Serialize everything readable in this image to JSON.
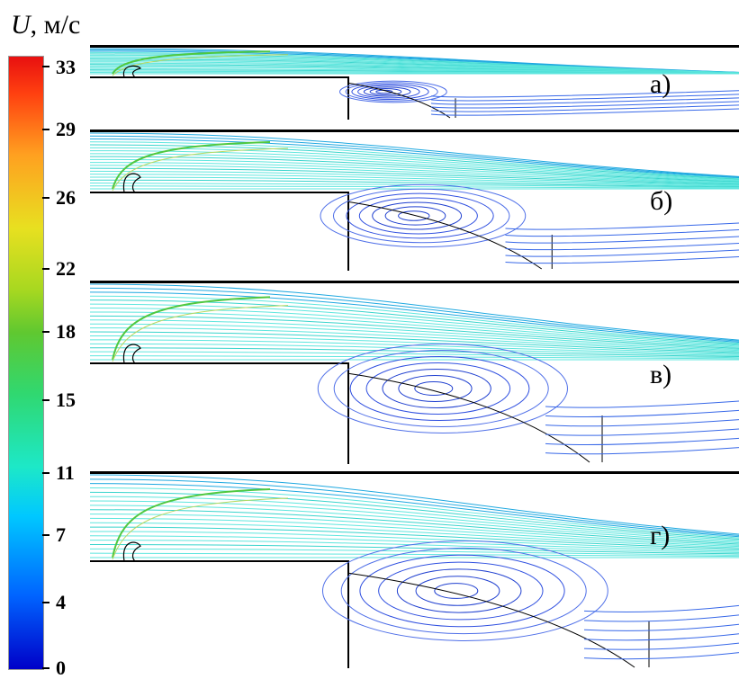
{
  "legend": {
    "symbol": "U",
    "units": ", м/с",
    "ticks": [
      "33",
      "29",
      "26",
      "22",
      "18",
      "15",
      "11",
      "7",
      "4",
      "0"
    ]
  },
  "panels": [
    {
      "label": "а)"
    },
    {
      "label": "б)"
    },
    {
      "label": "в)"
    },
    {
      "label": "г)"
    }
  ]
}
